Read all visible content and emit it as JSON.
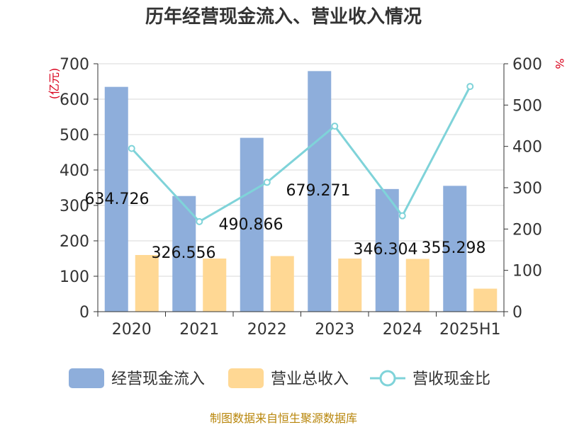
{
  "chart_data": {
    "type": "bar",
    "title": "历年经营现金流入、营业收入情况",
    "left_unit": "(亿元)",
    "right_unit": "%",
    "categories": [
      "2020",
      "2021",
      "2022",
      "2023",
      "2024",
      "2025H1"
    ],
    "series": [
      {
        "name": "经营现金流入",
        "type": "bar",
        "axis": "left",
        "color": "#8eaedb",
        "values": [
          634.726,
          326.556,
          490.866,
          679.271,
          346.304,
          355.298
        ]
      },
      {
        "name": "营业总收入",
        "type": "bar",
        "axis": "left",
        "color": "#ffd894",
        "values": [
          160,
          150,
          157,
          150,
          149,
          65
        ]
      },
      {
        "name": "营收现金比",
        "type": "line",
        "axis": "right",
        "color": "#7fd3d9",
        "values": [
          395,
          218,
          313,
          449,
          232,
          545
        ]
      }
    ],
    "data_labels": [
      "634.726",
      "326.556",
      "490.866",
      "679.271",
      "346.304",
      "355.298"
    ],
    "ylim_left": [
      0,
      700
    ],
    "yticks_left": [
      "0",
      "100",
      "200",
      "300",
      "400",
      "500",
      "600",
      "700"
    ],
    "ylim_right": [
      0,
      600
    ],
    "yticks_right": [
      "0",
      "100",
      "200",
      "300",
      "400",
      "500",
      "600"
    ],
    "grid": true,
    "legend_position": "bottom"
  },
  "footer": {
    "source": "制图数据来自恒生聚源数据库"
  }
}
